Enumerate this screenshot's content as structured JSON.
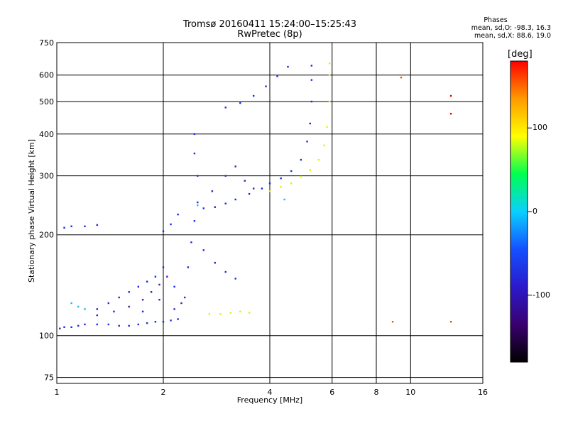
{
  "header": {
    "title": "Tromsø 20160411 15:24:00–15:25:43",
    "subtitle": "RwPretec (8p)"
  },
  "phase_stats": {
    "heading": "Phases",
    "line_o": "mean, sd,O: -98.3, 16.3",
    "line_x": "mean, sd,X:  88.6, 19.0"
  },
  "colorbar": {
    "unit_label": "[deg]",
    "ticks": [
      {
        "value": 100,
        "label": "100"
      },
      {
        "value": 0,
        "label": "0"
      },
      {
        "value": -100,
        "label": "-100"
      }
    ],
    "range": [
      -180,
      180
    ],
    "colors": [
      "#000000",
      "#3a0070",
      "#2a1acc",
      "#1450ff",
      "#0ad0ff",
      "#00ff50",
      "#ffff00",
      "#ff9a00",
      "#ff0000"
    ]
  },
  "chart_data": {
    "type": "scatter",
    "title": "Tromsø 20160411 15:24:00–15:25:43",
    "subtitle": "RwPretec (8p)",
    "xlabel": "Frequency [MHz]",
    "ylabel": "Stationary phase Virtual Height [km]",
    "x_scale": "log",
    "y_scale": "log",
    "xlim": [
      1,
      16
    ],
    "ylim": [
      72,
      750
    ],
    "xticks": [
      1,
      2,
      4,
      6,
      8,
      10,
      16
    ],
    "yticks": [
      75,
      100,
      200,
      300,
      400,
      500,
      600,
      750
    ],
    "grid": true,
    "series": [
      {
        "color": "#1a2ae0",
        "points": [
          [
            1.02,
            105
          ],
          [
            1.05,
            106
          ],
          [
            1.1,
            106
          ],
          [
            1.15,
            107
          ],
          [
            1.2,
            108
          ],
          [
            1.3,
            108
          ],
          [
            1.4,
            108
          ],
          [
            1.5,
            107
          ],
          [
            1.6,
            107
          ],
          [
            1.7,
            108
          ],
          [
            1.8,
            109
          ],
          [
            1.9,
            110
          ],
          [
            2.0,
            110
          ],
          [
            2.1,
            111
          ],
          [
            2.2,
            112
          ],
          [
            1.3,
            120
          ],
          [
            1.4,
            125
          ],
          [
            1.5,
            130
          ],
          [
            1.6,
            135
          ],
          [
            1.7,
            140
          ],
          [
            1.8,
            145
          ],
          [
            1.9,
            150
          ],
          [
            2.0,
            160
          ],
          [
            1.75,
            118
          ],
          [
            1.95,
            128
          ],
          [
            2.15,
            140
          ],
          [
            1.05,
            210
          ],
          [
            1.1,
            212
          ],
          [
            1.2,
            212
          ],
          [
            1.3,
            214
          ],
          [
            2.3,
            130
          ],
          [
            2.35,
            160
          ],
          [
            2.4,
            190
          ],
          [
            2.45,
            220
          ],
          [
            2.5,
            250
          ],
          [
            2.5,
            300
          ],
          [
            2.45,
            350
          ],
          [
            2.45,
            400
          ],
          [
            2.6,
            240
          ],
          [
            2.8,
            242
          ],
          [
            3.0,
            248
          ],
          [
            3.2,
            255
          ],
          [
            3.5,
            265
          ],
          [
            3.8,
            275
          ],
          [
            4.0,
            285
          ],
          [
            4.3,
            295
          ],
          [
            4.6,
            310
          ],
          [
            4.9,
            335
          ],
          [
            5.1,
            380
          ],
          [
            5.2,
            430
          ],
          [
            5.25,
            500
          ],
          [
            5.25,
            580
          ],
          [
            5.25,
            640
          ],
          [
            3.0,
            480
          ],
          [
            3.3,
            495
          ],
          [
            3.6,
            520
          ],
          [
            3.9,
            555
          ],
          [
            4.2,
            595
          ],
          [
            4.5,
            635
          ],
          [
            2.0,
            205
          ],
          [
            2.1,
            215
          ],
          [
            2.2,
            230
          ],
          [
            2.6,
            180
          ],
          [
            2.8,
            165
          ],
          [
            3.0,
            155
          ],
          [
            3.2,
            148
          ]
        ]
      },
      {
        "color": "#4a1aa8",
        "points": [
          [
            1.3,
            115
          ],
          [
            1.45,
            118
          ],
          [
            1.6,
            122
          ],
          [
            1.75,
            128
          ],
          [
            1.85,
            135
          ],
          [
            1.95,
            142
          ],
          [
            2.05,
            150
          ],
          [
            2.15,
            120
          ],
          [
            2.25,
            125
          ],
          [
            2.75,
            270
          ],
          [
            3.0,
            300
          ],
          [
            3.2,
            320
          ],
          [
            3.4,
            290
          ],
          [
            3.6,
            275
          ]
        ]
      },
      {
        "color": "#22b8f0",
        "points": [
          [
            1.1,
            125
          ],
          [
            1.15,
            122
          ],
          [
            1.2,
            120
          ],
          [
            2.5,
            245
          ],
          [
            4.4,
            255
          ]
        ]
      },
      {
        "color": "#e4f000",
        "points": [
          [
            2.7,
            116
          ],
          [
            2.9,
            116
          ],
          [
            3.1,
            117
          ],
          [
            3.3,
            118
          ],
          [
            3.5,
            117
          ],
          [
            4.0,
            270
          ],
          [
            4.3,
            278
          ],
          [
            4.6,
            285
          ],
          [
            4.9,
            298
          ],
          [
            5.2,
            312
          ],
          [
            5.5,
            335
          ],
          [
            5.7,
            370
          ],
          [
            5.8,
            420
          ],
          [
            5.9,
            500
          ],
          [
            5.9,
            600
          ],
          [
            5.9,
            650
          ]
        ]
      },
      {
        "color": "#cf6a00",
        "points": [
          [
            8.9,
            110
          ],
          [
            9.4,
            590
          ],
          [
            13.0,
            110
          ]
        ]
      },
      {
        "color": "#e00000",
        "points": [
          [
            13.0,
            520
          ],
          [
            13.0,
            460
          ]
        ]
      }
    ]
  }
}
